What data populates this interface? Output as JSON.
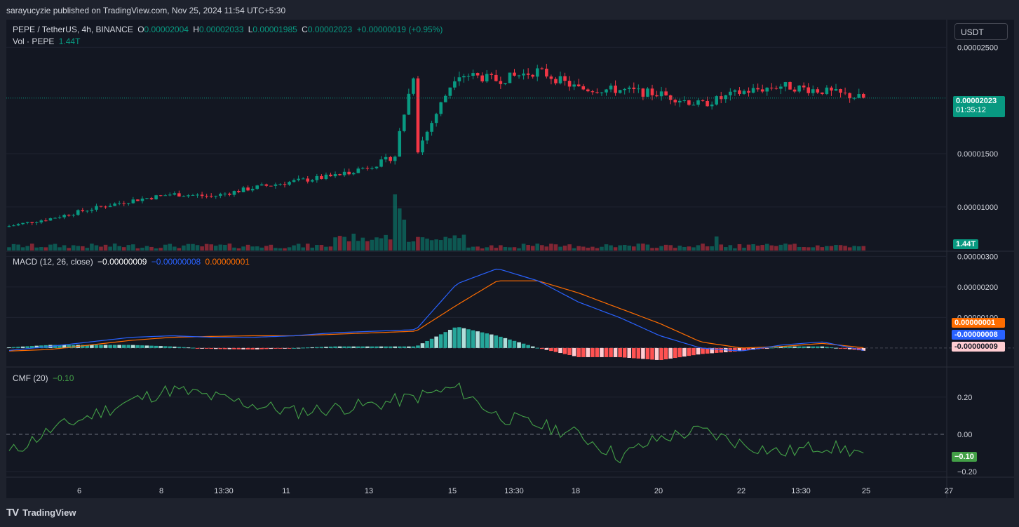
{
  "header": {
    "published": "sarayucyzie published on TradingView.com, Nov 25, 2024 11:54 UTC+5:30"
  },
  "legend": {
    "symbol": "PEPE / TetherUS, 4h, BINANCE",
    "o_label": "O",
    "o_value": "0.00002004",
    "h_label": "H",
    "h_value": "0.00002033",
    "l_label": "L",
    "l_value": "0.00001985",
    "c_label": "C",
    "c_value": "0.00002023",
    "change": "+0.00000019 (+0.95%)",
    "vol_label": "Vol · PEPE",
    "vol_value": "1.44T",
    "macd_label": "MACD (12, 26, close)",
    "macd_hist": "−0.00000009",
    "macd_line": "−0.00000008",
    "macd_signal": "0.00000001",
    "cmf_label": "CMF (20)",
    "cmf_value": "−0.10"
  },
  "currency_button": "USDT",
  "price_axis": {
    "ticks": [
      "0.00002500",
      "0.00001500",
      "0.00001000"
    ],
    "last_price": "0.00002023",
    "countdown": "01:35:12",
    "volume_tag": "1.44T"
  },
  "macd_axis": {
    "ticks": [
      "0.00000300",
      "0.00000200",
      "0.00000100"
    ],
    "signal_tag": "0.00000001",
    "macd_tag": "-0.00000008",
    "hist_tag": "-0.00000009"
  },
  "cmf_axis": {
    "ticks": [
      "0.20",
      "0.00",
      "−0.20"
    ],
    "value_tag": "−0.10"
  },
  "time_axis": {
    "labels": [
      "6",
      "8",
      "13:30",
      "11",
      "13",
      "15",
      "13:30",
      "18",
      "20",
      "22",
      "13:30",
      "25",
      "27"
    ]
  },
  "footer": {
    "brand": "TradingView"
  },
  "colors": {
    "up": "#089981",
    "down": "#f23645",
    "macd": "#2962ff",
    "signal": "#ff6d00",
    "cmf": "#43a047",
    "background": "#131722"
  },
  "chart_data": [
    {
      "type": "candlestick",
      "title": "PEPE / TetherUS, 4h, BINANCE",
      "x_range": [
        "Nov 4",
        "Nov 27"
      ],
      "ylim": [
        5.9e-06,
        2.76e-05
      ],
      "x": [
        "Nov 4",
        "Nov 5",
        "Nov 6",
        "Nov 7",
        "Nov 8",
        "Nov 9",
        "Nov 10",
        "Nov 11",
        "Nov 12",
        "Nov 13",
        "Nov 14",
        "Nov 15",
        "Nov 16",
        "Nov 17",
        "Nov 18",
        "Nov 19",
        "Nov 20",
        "Nov 21",
        "Nov 22",
        "Nov 23",
        "Nov 24",
        "Nov 25"
      ],
      "close": [
        8.2e-06,
        8.9e-06,
        9.8e-06,
        1.06e-05,
        1.12e-05,
        1.1e-05,
        1.18e-05,
        1.24e-05,
        1.29e-05,
        1.4e-05,
        1.5e-05,
        2.26e-05,
        2.19e-05,
        2.28e-05,
        2.11e-05,
        2.1e-05,
        2.06e-05,
        1.96e-05,
        2.08e-05,
        2.14e-05,
        2.09e-05,
        2.02e-05
      ],
      "last": 2.023e-05
    },
    {
      "type": "bar",
      "title": "Vol · PEPE",
      "last": "1.44T"
    },
    {
      "type": "line",
      "title": "MACD (12, 26, close)",
      "ylim": [
        -6e-07,
        3.1e-06
      ],
      "series": [
        {
          "name": "MACD",
          "values": [
            -8e-08,
            5e-08,
            2e-07,
            3.5e-07,
            4e-07,
            3.5e-07,
            3.5e-07,
            4e-07,
            5e-07,
            5.5e-07,
            6e-07,
            2.1e-06,
            2.6e-06,
            2.2e-06,
            1.5e-06,
            1e-06,
            4e-07,
            0.0,
            -1e-07,
            1e-07,
            2e-07,
            -8e-08
          ]
        },
        {
          "name": "Signal",
          "values": [
            -1e-07,
            -5e-08,
            1e-07,
            2.5e-07,
            3.5e-07,
            3.8e-07,
            4e-07,
            4e-07,
            4.5e-07,
            5e-07,
            5.5e-07,
            1.4e-06,
            2.2e-06,
            2.2e-06,
            1.8e-06,
            1.3e-06,
            8e-07,
            2e-07,
            0.0,
            5e-08,
            1.5e-07,
            1e-08
          ]
        },
        {
          "name": "Histogram",
          "values": [
            2e-08,
            1e-07,
            1e-07,
            1e-07,
            5e-08,
            -3e-08,
            -5e-08,
            0.0,
            5e-08,
            5e-08,
            5e-08,
            7e-07,
            4e-07,
            0.0,
            -3e-07,
            -3e-07,
            -4e-07,
            -2e-07,
            -1e-07,
            5e-08,
            5e-08,
            -9e-08
          ]
        }
      ],
      "last": {
        "macd": "-0.00000008",
        "signal": "0.00000001",
        "histogram": "-0.00000009"
      }
    },
    {
      "type": "line",
      "title": "CMF (20)",
      "ylim": [
        -0.2,
        0.35
      ],
      "series": [
        {
          "name": "CMF",
          "values": [
            -0.1,
            0.02,
            0.1,
            0.18,
            0.24,
            0.2,
            0.16,
            0.12,
            0.14,
            0.16,
            0.2,
            0.25,
            0.1,
            0.05,
            0.0,
            -0.12,
            -0.02,
            0.02,
            -0.05,
            -0.1,
            -0.06,
            -0.1
          ]
        }
      ],
      "reference_line": 0.0,
      "last": "-0.10"
    }
  ]
}
